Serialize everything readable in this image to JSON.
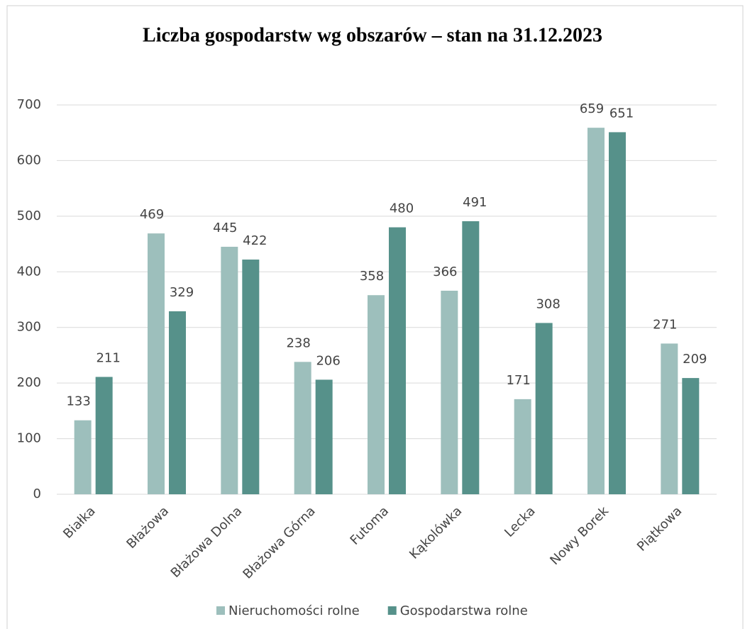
{
  "chart_data": {
    "type": "bar",
    "title": "Liczba gospodarstw wg obszarów – stan na 31.12.2023",
    "categories": [
      "Białka",
      "Błażowa",
      "Błażowa Dolna",
      "Błażowa Górna",
      "Futoma",
      "Kąkolówka",
      "Lecka",
      "Nowy Borek",
      "Piątkowa"
    ],
    "series": [
      {
        "name": "Nieruchomości rolne",
        "color": "#9dbfbc",
        "values": [
          133,
          469,
          445,
          238,
          358,
          366,
          171,
          659,
          271
        ]
      },
      {
        "name": "Gospodarstwa rolne",
        "color": "#56918a",
        "values": [
          211,
          329,
          422,
          206,
          480,
          491,
          308,
          651,
          209
        ]
      }
    ],
    "ylim": [
      0,
      700
    ],
    "yticks": [
      0,
      100,
      200,
      300,
      400,
      500,
      600,
      700
    ],
    "grid": true,
    "legend": "bottom"
  }
}
